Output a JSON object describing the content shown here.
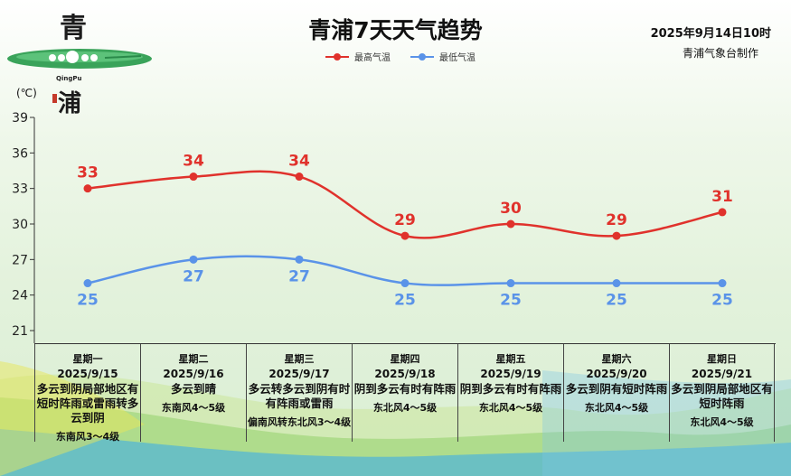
{
  "header": {
    "title": "青浦7天天气趋势",
    "date_stamp": "2025年9月14日10时",
    "source": "青浦气象台制作"
  },
  "logo": {
    "top_char": "青",
    "roman": "QingPu",
    "bottom_char": "浦"
  },
  "legend": {
    "high_label": "最高气温",
    "low_label": "最低气温"
  },
  "colors": {
    "high": "#e0322c",
    "low": "#5a93e8"
  },
  "chart_data": {
    "type": "line",
    "ylabel": "(℃)",
    "ylim": [
      21,
      39
    ],
    "yticks": [
      21,
      24,
      27,
      30,
      33,
      36,
      39
    ],
    "categories": [
      "星期一",
      "星期二",
      "星期三",
      "星期四",
      "星期五",
      "星期六",
      "星期日"
    ],
    "series": [
      {
        "name": "最高气温",
        "values": [
          33,
          34,
          34,
          29,
          30,
          29,
          31
        ]
      },
      {
        "name": "最低气温",
        "values": [
          25,
          27,
          27,
          25,
          25,
          25,
          25
        ]
      }
    ],
    "grid": false,
    "legend_position": "top-center"
  },
  "days": [
    {
      "weekday": "星期一",
      "date": "2025/9/15",
      "weather": "多云到阴局部地区有短时阵雨或雷雨转多云到阴",
      "wind": "东南风3～4级"
    },
    {
      "weekday": "星期二",
      "date": "2025/9/16",
      "weather": "多云到晴",
      "wind": "东南风4～5级"
    },
    {
      "weekday": "星期三",
      "date": "2025/9/17",
      "weather": "多云转多云到阴有时有阵雨或雷雨",
      "wind": "偏南风转东北风3～4级"
    },
    {
      "weekday": "星期四",
      "date": "2025/9/18",
      "weather": "阴到多云有时有阵雨",
      "wind": "东北风4～5级"
    },
    {
      "weekday": "星期五",
      "date": "2025/9/19",
      "weather": "阴到多云有时有阵雨",
      "wind": "东北风4～5级"
    },
    {
      "weekday": "星期六",
      "date": "2025/9/20",
      "weather": "多云到阴有短时阵雨",
      "wind": "东北风4～5级"
    },
    {
      "weekday": "星期日",
      "date": "2025/9/21",
      "weather": "多云到阴局部地区有短时阵雨",
      "wind": "东北风4～5级"
    }
  ]
}
